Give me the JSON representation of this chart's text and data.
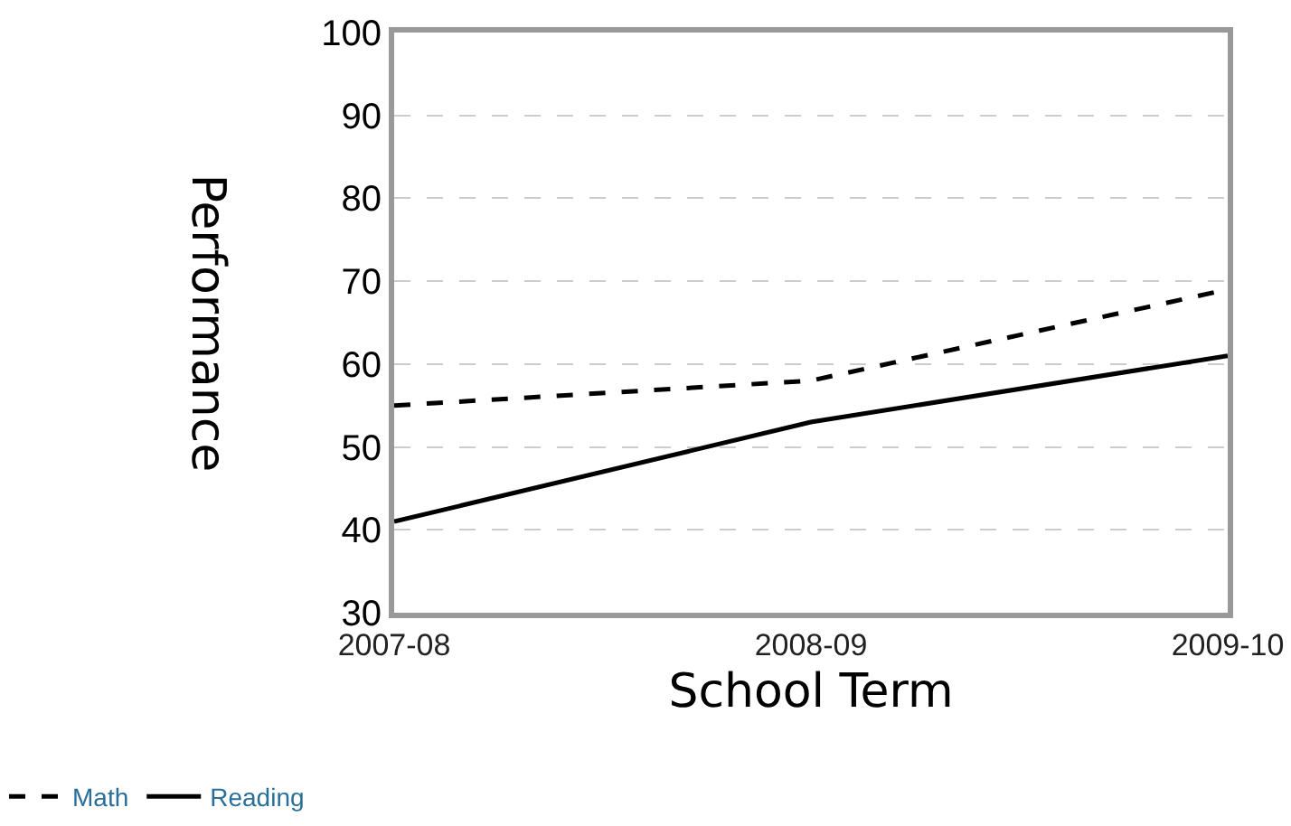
{
  "chart_data": {
    "type": "line",
    "xlabel": "School Term",
    "ylabel": "Performance",
    "categories": [
      "2007-08",
      "2008-09",
      "2009-10"
    ],
    "series": [
      {
        "name": "Math",
        "color": "#000000",
        "values": [
          55,
          58,
          69
        ],
        "line_style": "dashed"
      },
      {
        "name": "Reading",
        "color": "#000000",
        "values": [
          41,
          53,
          61
        ],
        "line_style": "solid"
      }
    ],
    "ylim": [
      30,
      100
    ],
    "yticks": [
      30,
      40,
      50,
      60,
      70,
      80,
      90,
      100
    ],
    "grid": "y",
    "legend": "bottom left",
    "marker": "none"
  }
}
